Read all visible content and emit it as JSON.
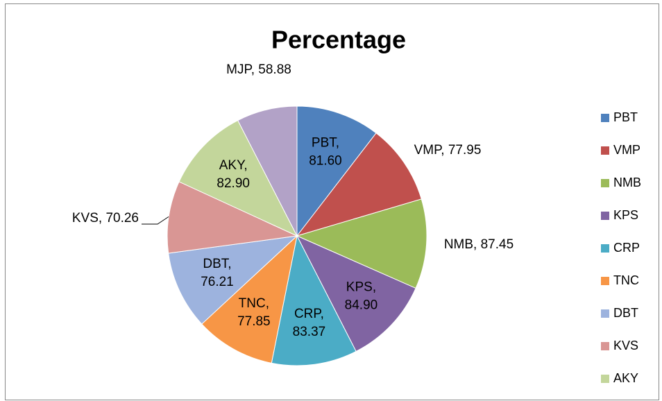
{
  "chart_data": {
    "type": "pie",
    "title": "Percentage",
    "categories": [
      "PBT",
      "VMP",
      "NMB",
      "KPS",
      "CRP",
      "TNC",
      "DBT",
      "KVS",
      "AKY",
      "MJP"
    ],
    "values": [
      81.6,
      77.95,
      87.45,
      84.9,
      83.37,
      77.85,
      76.21,
      70.26,
      82.9,
      58.88
    ],
    "value_labels": [
      "PBT, 81.60",
      "VMP, 77.95",
      "NMB, 87.45",
      "KPS, 84.90",
      "CRP, 83.37",
      "TNC, 77.85",
      "DBT, 76.21",
      "KVS, 70.26",
      "AKY, 82.90",
      "MJP, 58.88"
    ],
    "colors": [
      "#4f81bd",
      "#c0504d",
      "#9bbb59",
      "#8064a2",
      "#4bacc6",
      "#f79646",
      "#9db3de",
      "#d99694",
      "#c3d69b",
      "#b2a2c7"
    ],
    "legend": "right"
  }
}
